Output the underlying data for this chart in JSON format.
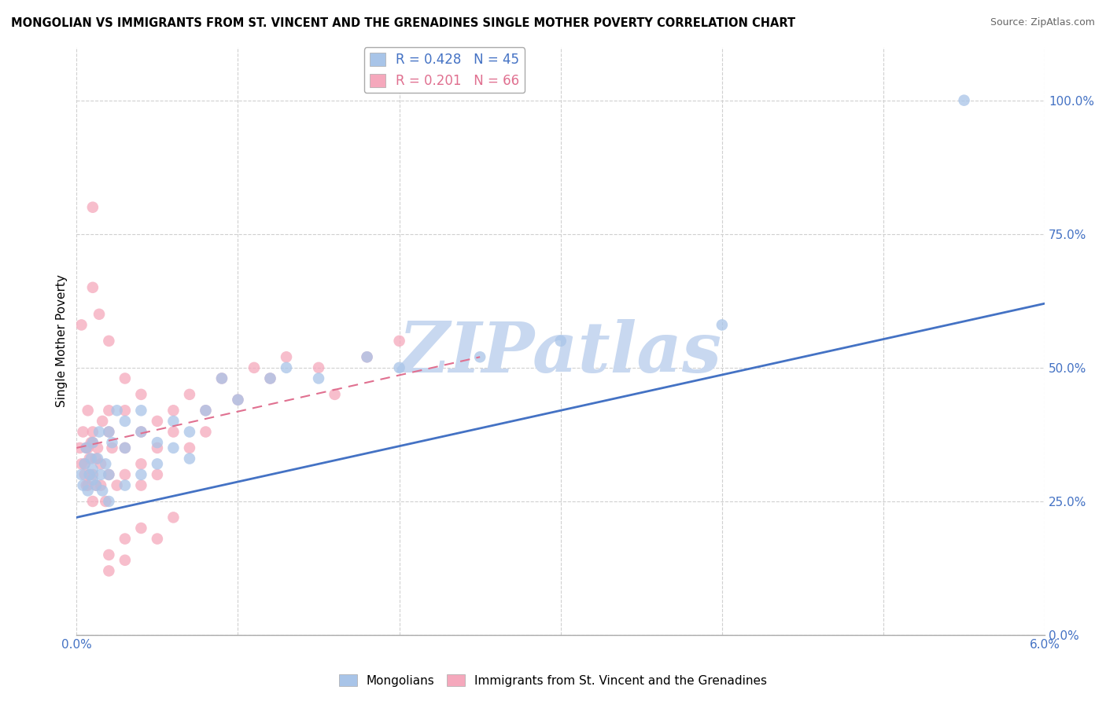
{
  "title": "MONGOLIAN VS IMMIGRANTS FROM ST. VINCENT AND THE GRENADINES SINGLE MOTHER POVERTY CORRELATION CHART",
  "source": "Source: ZipAtlas.com",
  "ylabel": "Single Mother Poverty",
  "xlim": [
    0.0,
    0.06
  ],
  "ylim": [
    0.0,
    1.1
  ],
  "yticks": [
    0.0,
    0.25,
    0.5,
    0.75,
    1.0
  ],
  "ytick_labels": [
    "0.0%",
    "25.0%",
    "50.0%",
    "75.0%",
    "100.0%"
  ],
  "xticks": [
    0.0,
    0.01,
    0.02,
    0.03,
    0.04,
    0.05,
    0.06
  ],
  "xtick_labels": [
    "0.0%",
    "",
    "",
    "",
    "",
    "",
    "6.0%"
  ],
  "legend_mongolian": "R = 0.428   N = 45",
  "legend_svg": "R = 0.201   N = 66",
  "blue_color": "#a8c4e8",
  "pink_color": "#f5a8bc",
  "line_blue": "#4472c4",
  "line_pink": "#e07090",
  "watermark": "ZIPatlas",
  "watermark_color": "#c8d8f0",
  "background": "#ffffff",
  "mongolian_x": [
    0.0003,
    0.0004,
    0.0005,
    0.0006,
    0.0007,
    0.0008,
    0.0009,
    0.001,
    0.001,
    0.001,
    0.0012,
    0.0013,
    0.0014,
    0.0015,
    0.0016,
    0.0018,
    0.002,
    0.002,
    0.002,
    0.0022,
    0.0025,
    0.003,
    0.003,
    0.003,
    0.004,
    0.004,
    0.004,
    0.005,
    0.005,
    0.006,
    0.006,
    0.007,
    0.007,
    0.008,
    0.009,
    0.01,
    0.012,
    0.013,
    0.015,
    0.018,
    0.02,
    0.025,
    0.03,
    0.04,
    0.055
  ],
  "mongolian_y": [
    0.3,
    0.28,
    0.32,
    0.35,
    0.27,
    0.3,
    0.33,
    0.29,
    0.36,
    0.31,
    0.28,
    0.33,
    0.38,
    0.3,
    0.27,
    0.32,
    0.3,
    0.38,
    0.25,
    0.36,
    0.42,
    0.35,
    0.4,
    0.28,
    0.38,
    0.42,
    0.3,
    0.36,
    0.32,
    0.4,
    0.35,
    0.38,
    0.33,
    0.42,
    0.48,
    0.44,
    0.48,
    0.5,
    0.48,
    0.52,
    0.5,
    0.52,
    0.55,
    0.58,
    1.0
  ],
  "svg_x": [
    0.0002,
    0.0003,
    0.0004,
    0.0005,
    0.0006,
    0.0007,
    0.0007,
    0.0008,
    0.0009,
    0.001,
    0.001,
    0.001,
    0.001,
    0.0012,
    0.0013,
    0.0014,
    0.0015,
    0.0016,
    0.0018,
    0.002,
    0.002,
    0.002,
    0.002,
    0.0022,
    0.0025,
    0.003,
    0.003,
    0.003,
    0.003,
    0.004,
    0.004,
    0.004,
    0.004,
    0.005,
    0.005,
    0.005,
    0.006,
    0.006,
    0.007,
    0.007,
    0.008,
    0.008,
    0.009,
    0.01,
    0.011,
    0.012,
    0.013,
    0.015,
    0.016,
    0.018,
    0.02,
    0.0005,
    0.0006,
    0.0007,
    0.0008,
    0.001,
    0.001,
    0.0012,
    0.0015,
    0.002,
    0.002,
    0.003,
    0.003,
    0.004,
    0.005,
    0.006,
    0.0003
  ],
  "svg_y": [
    0.35,
    0.32,
    0.38,
    0.3,
    0.35,
    0.28,
    0.42,
    0.33,
    0.36,
    0.3,
    0.38,
    0.8,
    0.65,
    0.28,
    0.35,
    0.6,
    0.32,
    0.4,
    0.25,
    0.38,
    0.3,
    0.42,
    0.55,
    0.35,
    0.28,
    0.35,
    0.42,
    0.3,
    0.48,
    0.38,
    0.32,
    0.45,
    0.28,
    0.4,
    0.35,
    0.3,
    0.42,
    0.38,
    0.45,
    0.35,
    0.42,
    0.38,
    0.48,
    0.44,
    0.5,
    0.48,
    0.52,
    0.5,
    0.45,
    0.52,
    0.55,
    0.32,
    0.28,
    0.35,
    0.3,
    0.36,
    0.25,
    0.33,
    0.28,
    0.15,
    0.12,
    0.18,
    0.14,
    0.2,
    0.18,
    0.22,
    0.58
  ],
  "blue_line_x": [
    0.0,
    0.06
  ],
  "blue_line_y": [
    0.22,
    0.62
  ],
  "pink_line_x": [
    0.0,
    0.025
  ],
  "pink_line_y": [
    0.35,
    0.52
  ]
}
